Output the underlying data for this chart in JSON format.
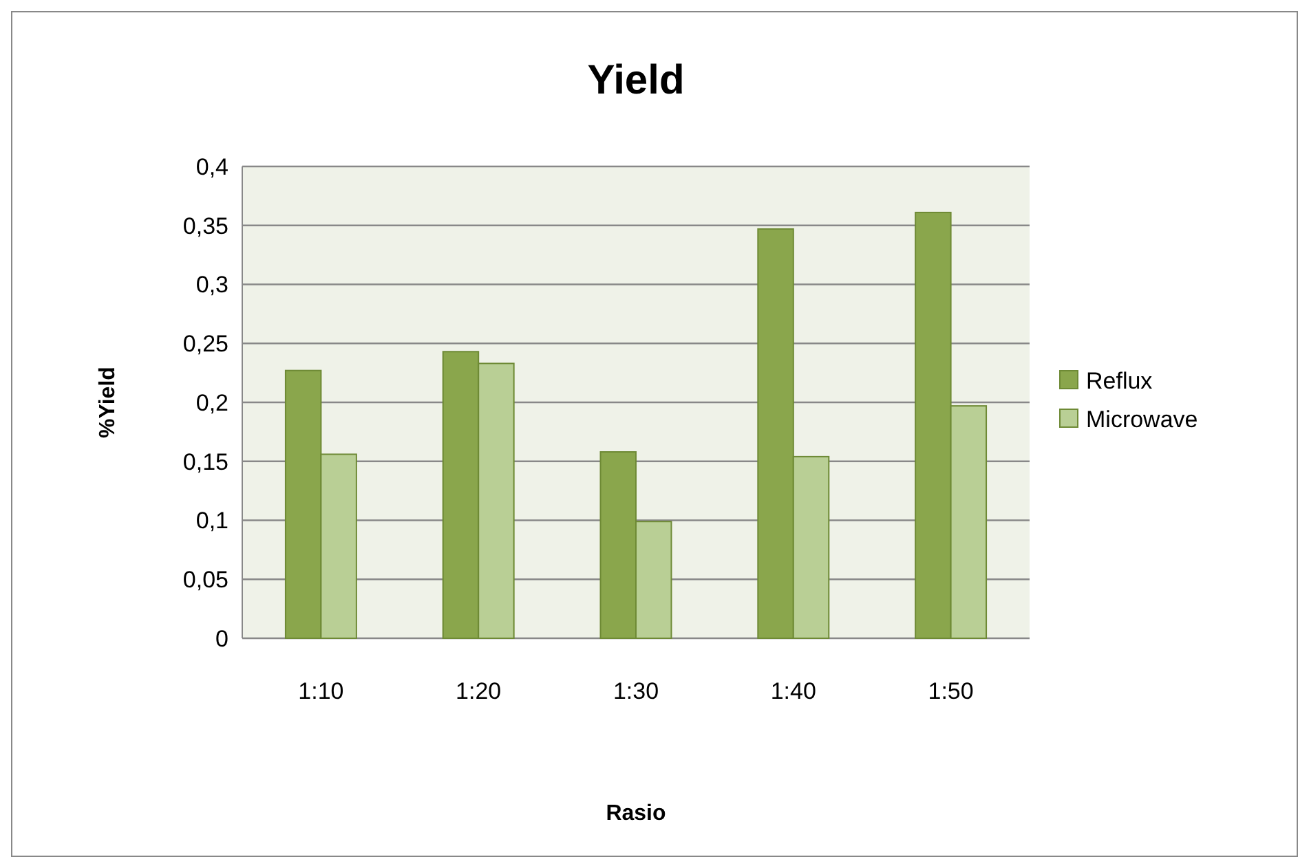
{
  "chart_data": {
    "type": "bar",
    "title": "Yield",
    "xlabel": "Rasio",
    "ylabel": "%Yield",
    "categories": [
      "1:10",
      "1:20",
      "1:30",
      "1:40",
      "1:50"
    ],
    "series": [
      {
        "name": "Reflux",
        "color": "#8aa64c",
        "values": [
          0.227,
          0.243,
          0.158,
          0.347,
          0.361
        ]
      },
      {
        "name": "Microwave",
        "color": "#b9cf95",
        "values": [
          0.156,
          0.233,
          0.099,
          0.154,
          0.197
        ]
      }
    ],
    "ylim": [
      0,
      0.4
    ],
    "yticks": [
      0,
      {
        "value": 0.05,
        "label": "0,05"
      },
      {
        "value": 0.1,
        "label": "0,1"
      },
      {
        "value": 0.15,
        "label": "0,15"
      },
      {
        "value": 0.2,
        "label": "0,2"
      },
      {
        "value": 0.25,
        "label": "0,25"
      },
      {
        "value": 0.3,
        "label": "0,3"
      },
      {
        "value": 0.35,
        "label": "0,35"
      },
      {
        "value": 0.4,
        "label": "0,4"
      }
    ],
    "grid": "y",
    "legend": "right"
  }
}
